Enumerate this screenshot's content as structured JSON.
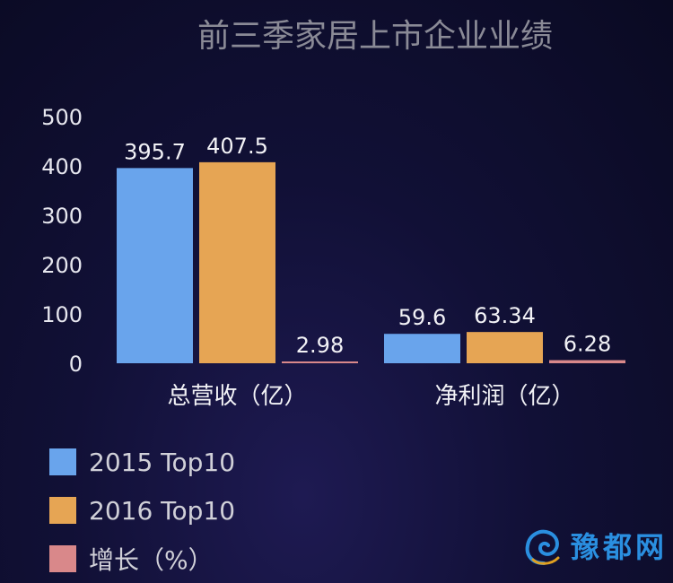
{
  "chart_data": {
    "type": "bar",
    "title": "前三季家居上市企业业绩",
    "categories": [
      "总营收（亿）",
      "净利润（亿）"
    ],
    "series": [
      {
        "name": "2015 Top10",
        "color": "#69a4ec",
        "values": [
          395.7,
          59.6
        ],
        "labels": [
          "395.7",
          "59.6"
        ]
      },
      {
        "name": "2016 Top10",
        "color": "#e6a554",
        "values": [
          407.5,
          63.34
        ],
        "labels": [
          "407.5",
          "63.34"
        ]
      },
      {
        "name": "增长（%）",
        "color": "#d9888a",
        "values": [
          2.98,
          6.28
        ],
        "labels": [
          "2.98",
          "6.28"
        ]
      }
    ],
    "yticks": [
      "0",
      "100",
      "200",
      "300",
      "400",
      "500"
    ],
    "ylim": [
      0,
      500
    ],
    "grid": false,
    "legend_position": "bottom-left"
  },
  "watermark": {
    "text": "豫都网",
    "icon": "swirl-logo-icon"
  }
}
